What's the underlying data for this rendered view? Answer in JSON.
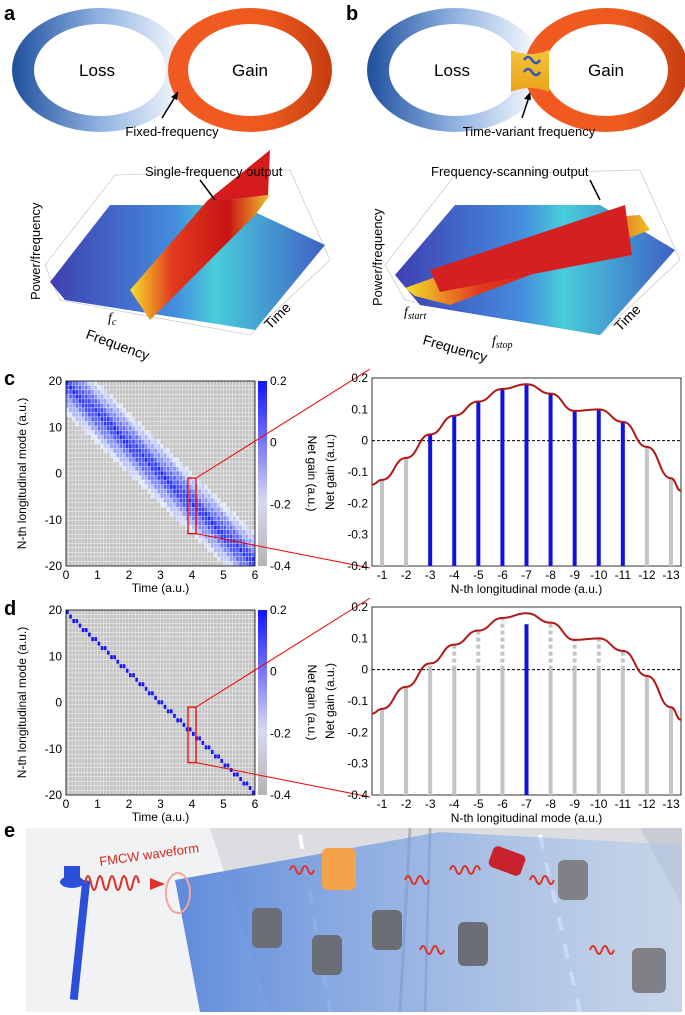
{
  "panels": {
    "a": {
      "letter": "a",
      "ring_left": "Loss",
      "ring_right": "Gain",
      "coupling": "Fixed-frequency",
      "output": "Single-frequency output",
      "zlabel": "Power/frequency",
      "xlabel": "Frequency",
      "ylabel": "Time",
      "marker": "f",
      "marker_sub": "c"
    },
    "b": {
      "letter": "b",
      "ring_left": "Loss",
      "ring_right": "Gain",
      "coupling": "Time-variant frequency",
      "output": "Frequency-scanning output",
      "zlabel": "Power/frequency",
      "xlabel": "Frequency",
      "ylabel": "Time",
      "marker_start": "f",
      "marker_start_sub": "start",
      "marker_stop": "f",
      "marker_stop_sub": "stop"
    },
    "c": {
      "letter": "c"
    },
    "d": {
      "letter": "d"
    },
    "e": {
      "letter": "e",
      "waveform_label": "FMCW waveform"
    }
  },
  "chart_data": [
    {
      "id": "c-heatmap",
      "type": "heatmap",
      "xlabel": "Time (a.u.)",
      "ylabel": "N-th longitudinal mode (a.u.)",
      "xlim": [
        0,
        6
      ],
      "ylim": [
        -20,
        20
      ],
      "xticks": [
        "0",
        "1",
        "2",
        "3",
        "4",
        "5",
        "6"
      ],
      "yticks": [
        "20",
        "10",
        "0",
        "-10",
        "-20"
      ],
      "colorbar_label": "Net gain (a.u.)",
      "colorbar_ticks": [
        "0.2",
        "0",
        "-0.2",
        "-0.4"
      ],
      "clim": [
        -0.4,
        0.2
      ],
      "band": {
        "start_mode": 20,
        "end_mode": -20,
        "halfwidth_modes": 7
      },
      "highlight": {
        "time": 4,
        "mode_from": -1,
        "mode_to": -13
      }
    },
    {
      "id": "c-bars",
      "type": "bar",
      "xlabel": "N-th longitudinal mode (a.u.)",
      "ylabel": "Net gain (a.u.)",
      "ylim": [
        -0.4,
        0.2
      ],
      "yticks": [
        "0.2",
        "0.1",
        "0",
        "-0.1",
        "-0.2",
        "-0.3",
        "-0.4"
      ],
      "categories": [
        "-1",
        "-2",
        "-3",
        "-4",
        "-5",
        "-6",
        "-7",
        "-8",
        "-9",
        "-10",
        "-11",
        "-12",
        "-13"
      ],
      "curve": [
        -0.125,
        -0.055,
        0.02,
        0.08,
        0.125,
        0.165,
        0.18,
        0.15,
        0.095,
        0.1,
        0.06,
        -0.02,
        -0.12
      ],
      "active": [
        false,
        false,
        true,
        true,
        true,
        true,
        true,
        true,
        true,
        true,
        true,
        false,
        false
      ]
    },
    {
      "id": "d-heatmap",
      "type": "heatmap",
      "xlabel": "Time (a.u.)",
      "ylabel": "N-th longitudinal mode (a.u.)",
      "xlim": [
        0,
        6
      ],
      "ylim": [
        -20,
        20
      ],
      "xticks": [
        "0",
        "1",
        "2",
        "3",
        "4",
        "5",
        "6"
      ],
      "yticks": [
        "20",
        "10",
        "0",
        "-10",
        "-20"
      ],
      "colorbar_label": "Net gain (a.u.)",
      "colorbar_ticks": [
        "0.2",
        "0",
        "-0.2",
        "-0.4"
      ],
      "clim": [
        -0.4,
        0.2
      ],
      "band": {
        "start_mode": 20,
        "end_mode": -20,
        "halfwidth_modes": 0
      },
      "highlight": {
        "time": 4,
        "mode_from": -1,
        "mode_to": -13
      }
    },
    {
      "id": "d-bars",
      "type": "bar",
      "xlabel": "N-th longitudinal mode (a.u.)",
      "ylabel": "Net gain (a.u.)",
      "ylim": [
        -0.4,
        0.2
      ],
      "yticks": [
        "0.2",
        "0.1",
        "0",
        "-0.1",
        "-0.2",
        "-0.3",
        "-0.4"
      ],
      "categories": [
        "-1",
        "-2",
        "-3",
        "-4",
        "-5",
        "-6",
        "-7",
        "-8",
        "-9",
        "-10",
        "-11",
        "-12",
        "-13"
      ],
      "curve": [
        -0.125,
        -0.055,
        0.02,
        0.08,
        0.125,
        0.165,
        0.18,
        0.15,
        0.095,
        0.1,
        0.06,
        -0.02,
        -0.12
      ],
      "active_index": 6,
      "active_value": 0.145
    }
  ]
}
